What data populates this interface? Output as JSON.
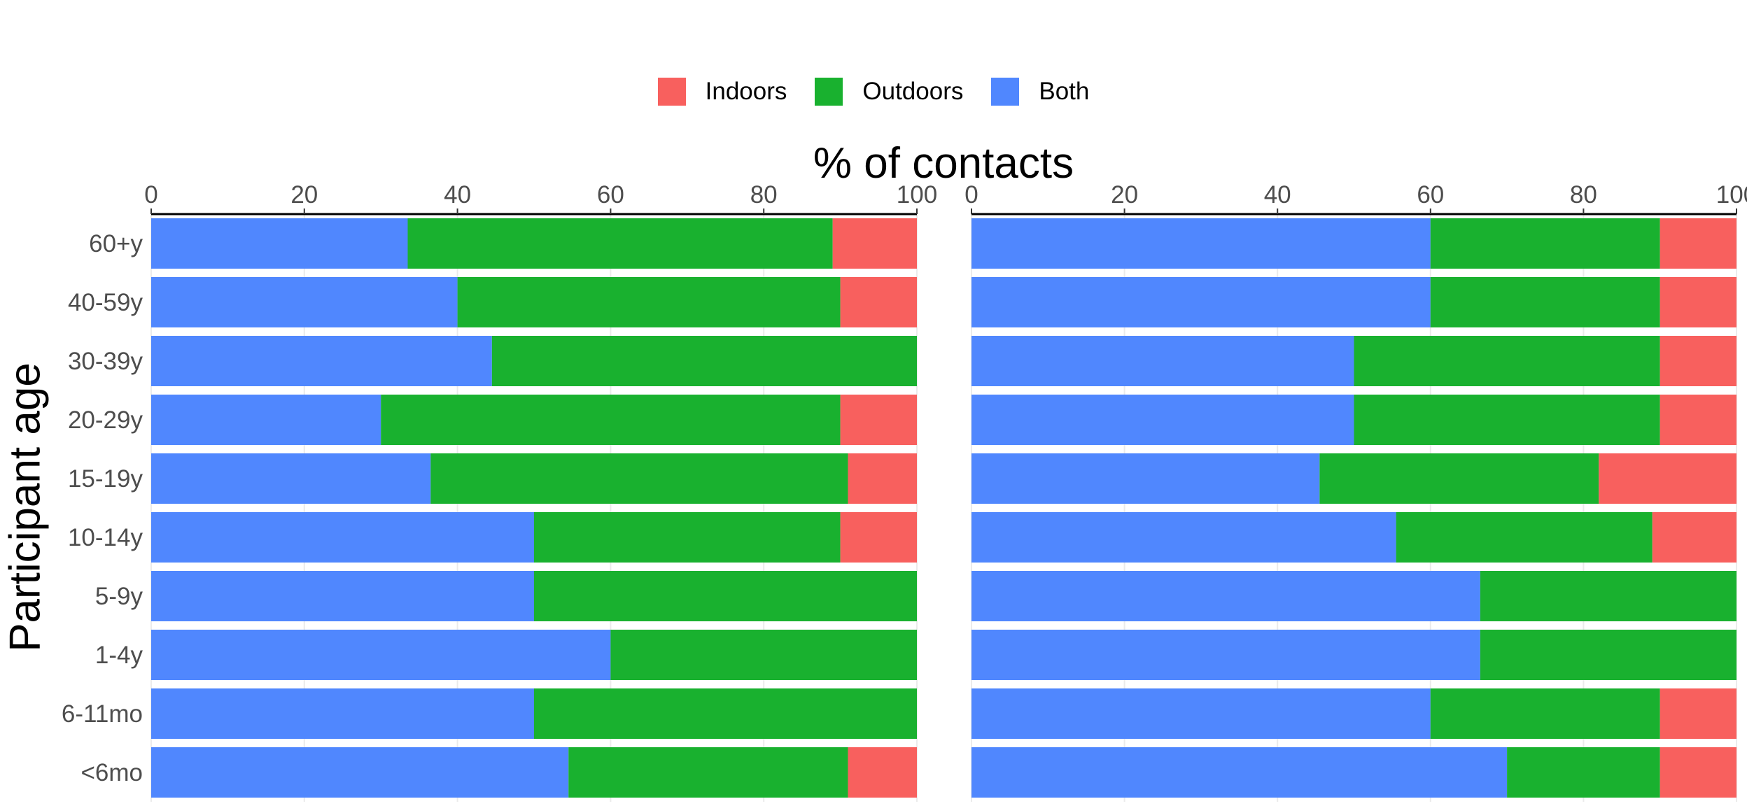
{
  "chart_data": {
    "type": "bar",
    "orientation": "horizontal",
    "stacked": true,
    "xlabel": "% of contacts",
    "ylabel": "Participant age",
    "xlim": [
      0,
      100
    ],
    "xticks": [
      0,
      20,
      40,
      60,
      80,
      100
    ],
    "categories": [
      "60+y",
      "40-59y",
      "30-39y",
      "20-29y",
      "15-19y",
      "10-14y",
      "5-9y",
      "1-4y",
      "6-11mo",
      "<6mo"
    ],
    "legend": {
      "position": "top",
      "entries": [
        "Indoors",
        "Outdoors",
        "Both"
      ]
    },
    "colors": {
      "Indoors": "#F8605E",
      "Outdoors": "#19B12F",
      "Both": "#5087FE"
    },
    "panels": [
      {
        "series": [
          {
            "name": "Both",
            "values": [
              33.5,
              40,
              44.5,
              30,
              36.5,
              50,
              50,
              60,
              50,
              54.5
            ]
          },
          {
            "name": "Outdoors",
            "values": [
              55.5,
              50,
              55.5,
              60,
              54.5,
              40,
              50,
              40,
              50,
              36.5
            ]
          },
          {
            "name": "Indoors",
            "values": [
              11,
              10,
              0,
              10,
              9,
              10,
              0,
              0,
              0,
              9
            ]
          }
        ]
      },
      {
        "series": [
          {
            "name": "Both",
            "values": [
              60,
              60,
              50,
              50,
              45.5,
              55.5,
              66.5,
              66.5,
              60,
              70
            ]
          },
          {
            "name": "Outdoors",
            "values": [
              30,
              30,
              40,
              40,
              36.5,
              33.5,
              33.5,
              33.5,
              30,
              20
            ]
          },
          {
            "name": "Indoors",
            "values": [
              10,
              10,
              10,
              10,
              18,
              11,
              0,
              0,
              10,
              10
            ]
          }
        ]
      }
    ]
  }
}
